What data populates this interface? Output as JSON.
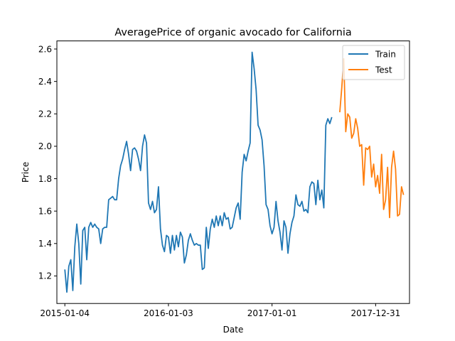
{
  "chart_data": {
    "type": "line",
    "title": "AveragePrice of organic avocado for California",
    "xlabel": "Date",
    "ylabel": "Price",
    "x_ticks": [
      "2015-01-04",
      "2016-01-03",
      "2017-01-01",
      "2017-12-31"
    ],
    "y_ticks": [
      "1.2",
      "1.4",
      "1.6",
      "1.8",
      "2.0",
      "2.2",
      "2.4",
      "2.6"
    ],
    "ylim": [
      1.03,
      2.65
    ],
    "xlim": [
      "2014-12-07",
      "2018-04-29"
    ],
    "grid": false,
    "legend_position": "top-right",
    "series": [
      {
        "name": "Train",
        "color": "#1f77b4",
        "start_date": "2015-01-04",
        "step_days": 7,
        "values": [
          1.24,
          1.1,
          1.26,
          1.3,
          1.11,
          1.38,
          1.52,
          1.4,
          1.15,
          1.48,
          1.5,
          1.3,
          1.5,
          1.53,
          1.5,
          1.52,
          1.5,
          1.49,
          1.4,
          1.49,
          1.5,
          1.5,
          1.67,
          1.68,
          1.69,
          1.67,
          1.67,
          1.8,
          1.88,
          1.92,
          1.98,
          2.03,
          1.95,
          1.85,
          1.98,
          1.99,
          1.97,
          1.92,
          1.85,
          2.0,
          2.07,
          2.02,
          1.65,
          1.61,
          1.66,
          1.59,
          1.61,
          1.75,
          1.49,
          1.39,
          1.35,
          1.45,
          1.44,
          1.34,
          1.45,
          1.36,
          1.45,
          1.38,
          1.47,
          1.44,
          1.28,
          1.33,
          1.42,
          1.46,
          1.42,
          1.39,
          1.4,
          1.39,
          1.39,
          1.24,
          1.25,
          1.5,
          1.37,
          1.49,
          1.55,
          1.5,
          1.57,
          1.51,
          1.57,
          1.51,
          1.59,
          1.55,
          1.56,
          1.49,
          1.5,
          1.56,
          1.62,
          1.65,
          1.55,
          1.84,
          1.95,
          1.91,
          1.97,
          2.02,
          2.58,
          2.48,
          2.35,
          2.13,
          2.1,
          2.04,
          1.88,
          1.64,
          1.61,
          1.51,
          1.46,
          1.5,
          1.66,
          1.54,
          1.47,
          1.36,
          1.54,
          1.5,
          1.34,
          1.46,
          1.53,
          1.57,
          1.7,
          1.64,
          1.63,
          1.66,
          1.6,
          1.61,
          1.59,
          1.75,
          1.78,
          1.77,
          1.64,
          1.79,
          1.67,
          1.73,
          1.62,
          2.13,
          2.17,
          2.14,
          2.18
        ]
      },
      {
        "name": "Test",
        "color": "#ff7f0e",
        "start_date": "2017-08-27",
        "step_days": 7,
        "values": [
          2.21,
          2.36,
          2.54,
          2.09,
          2.2,
          2.18,
          2.05,
          2.08,
          2.17,
          2.11,
          2.0,
          2.01,
          1.76,
          1.99,
          1.98,
          2.0,
          1.81,
          1.89,
          1.75,
          1.82,
          1.71,
          1.95,
          1.61,
          1.67,
          1.87,
          1.56,
          1.87,
          1.97,
          1.86,
          1.57,
          1.58,
          1.75,
          1.7
        ]
      }
    ]
  }
}
